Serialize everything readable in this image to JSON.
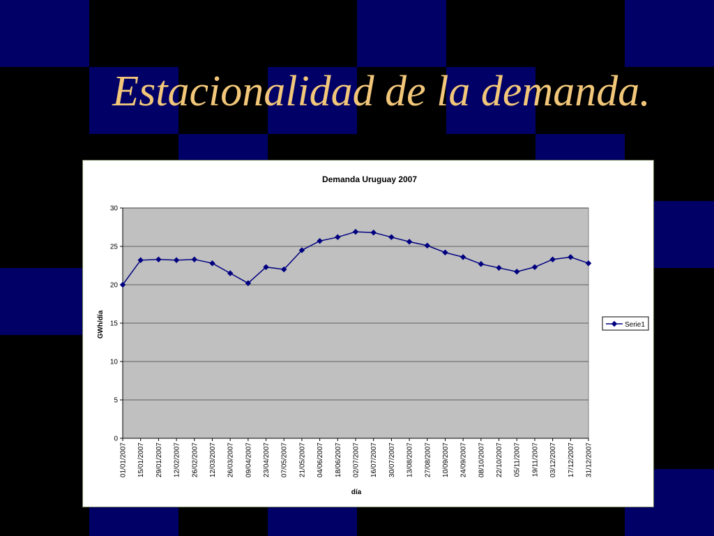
{
  "slide": {
    "title": "Estacionalidad de la demanda.",
    "title_color": "#f2c77a",
    "background_color": "#000000",
    "tile_color": "#000066"
  },
  "chart_data": {
    "type": "line",
    "title": "Demanda Uruguay 2007",
    "xlabel": "día",
    "ylabel": "GWh/día",
    "ylim": [
      0,
      30
    ],
    "y_ticks": [
      0,
      5,
      10,
      15,
      20,
      25,
      30
    ],
    "grid": true,
    "legend_position": "right",
    "plot_background": "#c0c0c0",
    "series_color": "#000080",
    "x_ticks": [
      "01/01/2007",
      "15/01/2007",
      "29/01/2007",
      "12/02/2007",
      "26/02/2007",
      "12/03/2007",
      "26/03/2007",
      "09/04/2007",
      "23/04/2007",
      "07/05/2007",
      "21/05/2007",
      "04/06/2007",
      "18/06/2007",
      "02/07/2007",
      "16/07/2007",
      "30/07/2007",
      "13/08/2007",
      "27/08/2007",
      "10/09/2007",
      "24/09/2007",
      "08/10/2007",
      "22/10/2007",
      "05/11/2007",
      "19/11/2007",
      "03/12/2007",
      "17/12/2007",
      "31/12/2007"
    ],
    "series": [
      {
        "name": "Serie1",
        "x": [
          "01/01/2007",
          "15/01/2007",
          "29/01/2007",
          "12/02/2007",
          "26/02/2007",
          "12/03/2007",
          "26/03/2007",
          "09/04/2007",
          "23/04/2007",
          "07/05/2007",
          "21/05/2007",
          "04/06/2007",
          "18/06/2007",
          "02/07/2007",
          "16/07/2007",
          "30/07/2007",
          "13/08/2007",
          "27/08/2007",
          "10/09/2007",
          "24/09/2007",
          "08/10/2007",
          "22/10/2007",
          "05/11/2007",
          "19/11/2007",
          "03/12/2007",
          "17/12/2007",
          "31/12/2007"
        ],
        "values": [
          20.0,
          23.2,
          23.3,
          23.2,
          23.3,
          22.8,
          21.5,
          20.2,
          22.3,
          22.0,
          24.5,
          25.7,
          26.2,
          26.9,
          26.8,
          26.2,
          25.6,
          25.1,
          24.2,
          23.6,
          22.7,
          22.2,
          21.7,
          22.3,
          23.3,
          23.6,
          22.8
        ]
      }
    ]
  }
}
